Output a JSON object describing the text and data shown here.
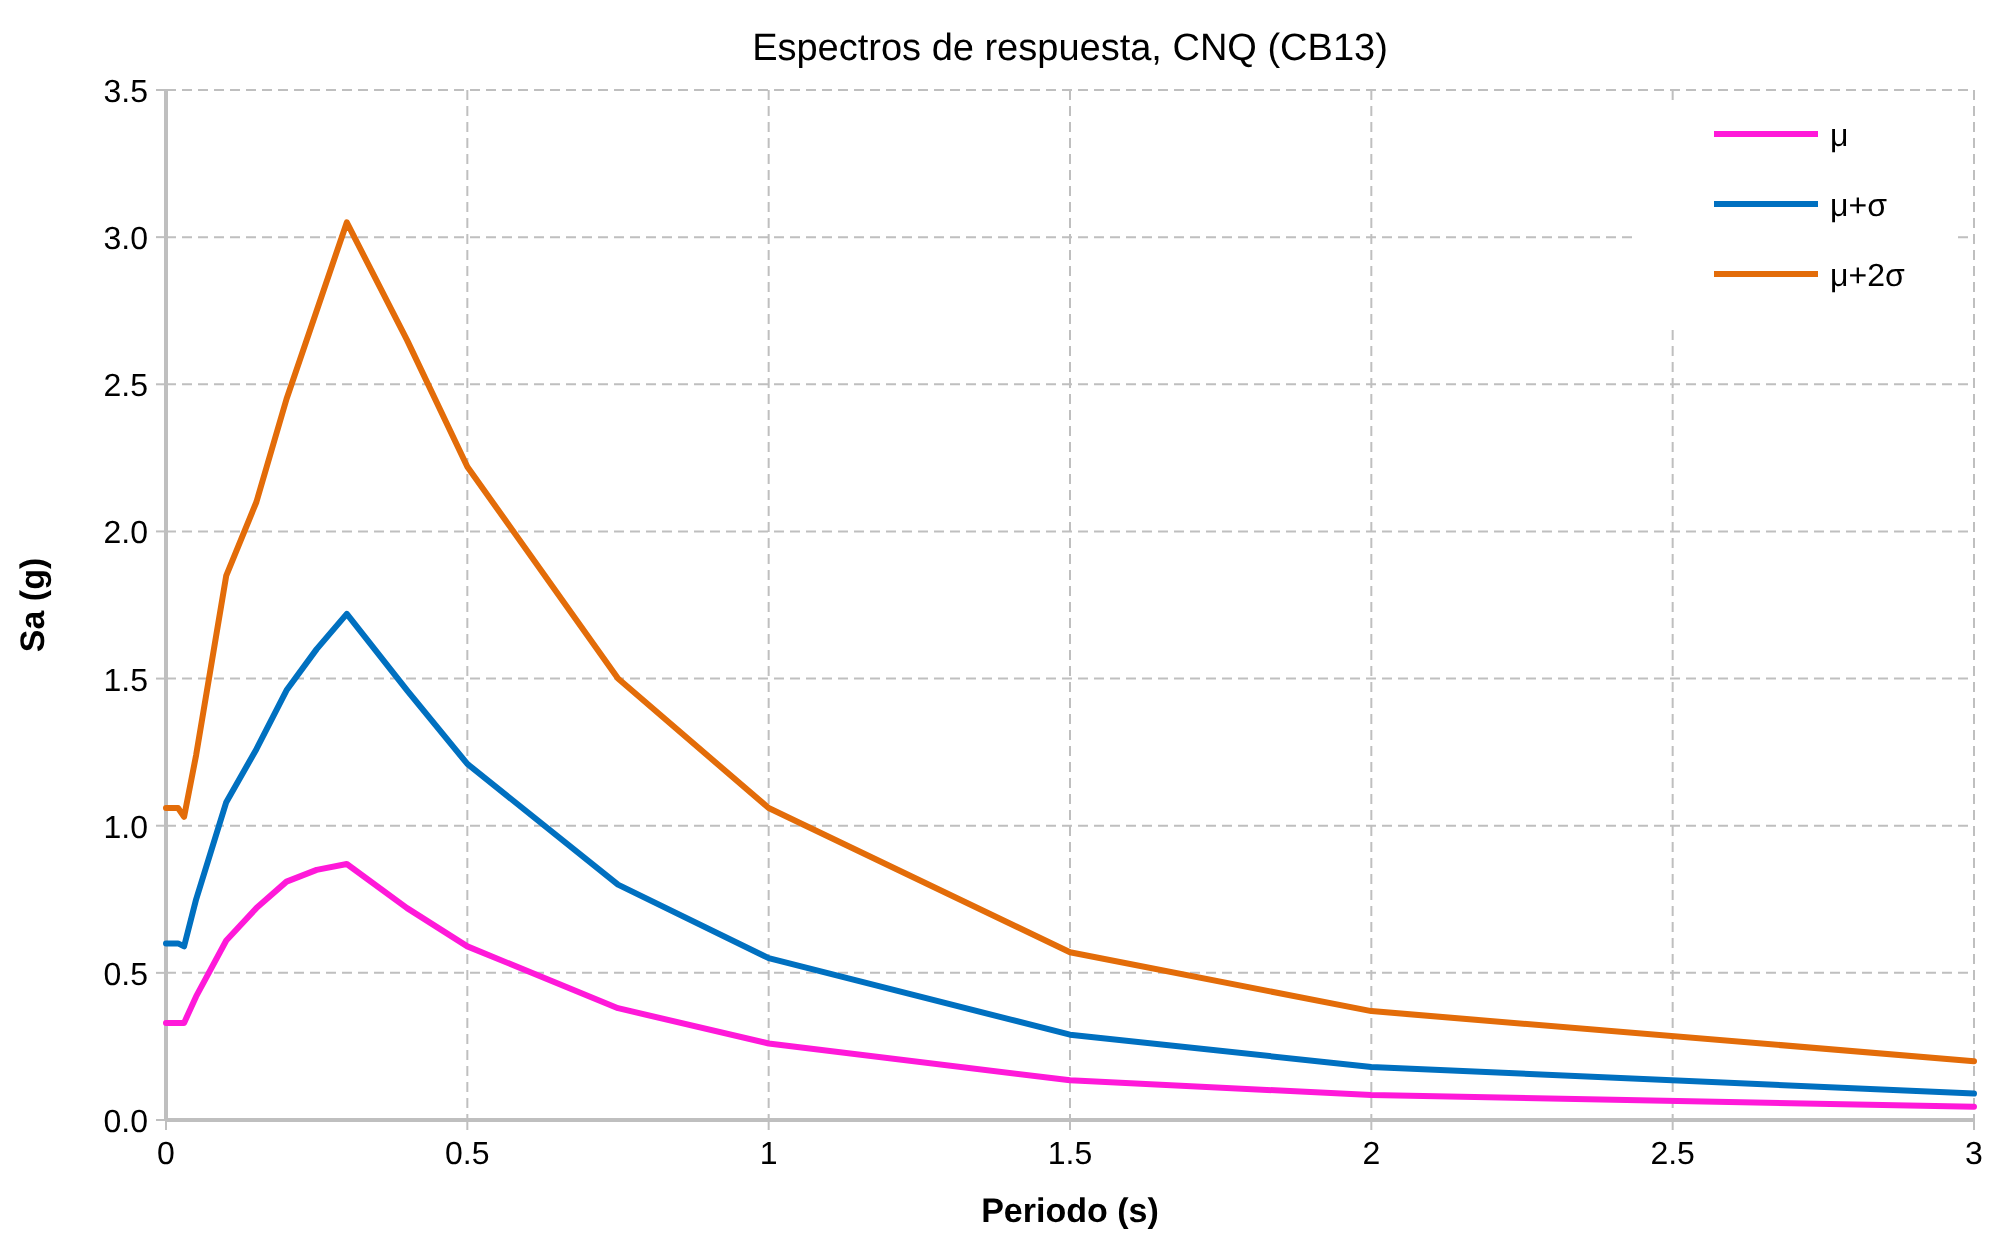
{
  "chart_data": {
    "type": "line",
    "title": "Espectros de respuesta, CNQ (CB13)",
    "xlabel": "Periodo (s)",
    "ylabel": "Sa (g)",
    "x": [
      0,
      0.02,
      0.03,
      0.05,
      0.1,
      0.15,
      0.2,
      0.25,
      0.3,
      0.4,
      0.5,
      0.75,
      1,
      1.5,
      2,
      3
    ],
    "series": [
      {
        "name": "μ",
        "color": "#ff19d9",
        "values": [
          0.33,
          0.33,
          0.33,
          0.42,
          0.61,
          0.72,
          0.81,
          0.85,
          0.87,
          0.72,
          0.59,
          0.38,
          0.26,
          0.135,
          0.085,
          0.045
        ]
      },
      {
        "name": "μ+σ",
        "color": "#0070c0",
        "values": [
          0.6,
          0.6,
          0.59,
          0.75,
          1.08,
          1.26,
          1.46,
          1.6,
          1.72,
          1.46,
          1.21,
          0.8,
          0.55,
          0.29,
          0.18,
          0.09
        ]
      },
      {
        "name": "μ+2σ",
        "color": "#e36c09",
        "values": [
          1.06,
          1.06,
          1.03,
          1.24,
          1.85,
          2.1,
          2.45,
          2.75,
          3.05,
          2.65,
          2.22,
          1.5,
          1.06,
          0.57,
          0.37,
          0.2
        ]
      }
    ],
    "xlim": [
      0,
      3
    ],
    "xticks": [
      0,
      0.5,
      1,
      1.5,
      2,
      2.5,
      3
    ],
    "ylim": [
      0,
      3.5
    ],
    "yticks": [
      {
        "value": 0,
        "label": "0.0"
      },
      {
        "value": 0.5,
        "label": "0.5"
      },
      {
        "value": 1,
        "label": "1.0"
      },
      {
        "value": 1.5,
        "label": "1.5"
      },
      {
        "value": 2,
        "label": "2.0"
      },
      {
        "value": 2.5,
        "label": "2.5"
      },
      {
        "value": 3,
        "label": "3.0"
      },
      {
        "value": 3.5,
        "label": "3.5"
      }
    ],
    "grid": true,
    "legend": "top right",
    "marker": "none",
    "line_style": "solid"
  }
}
